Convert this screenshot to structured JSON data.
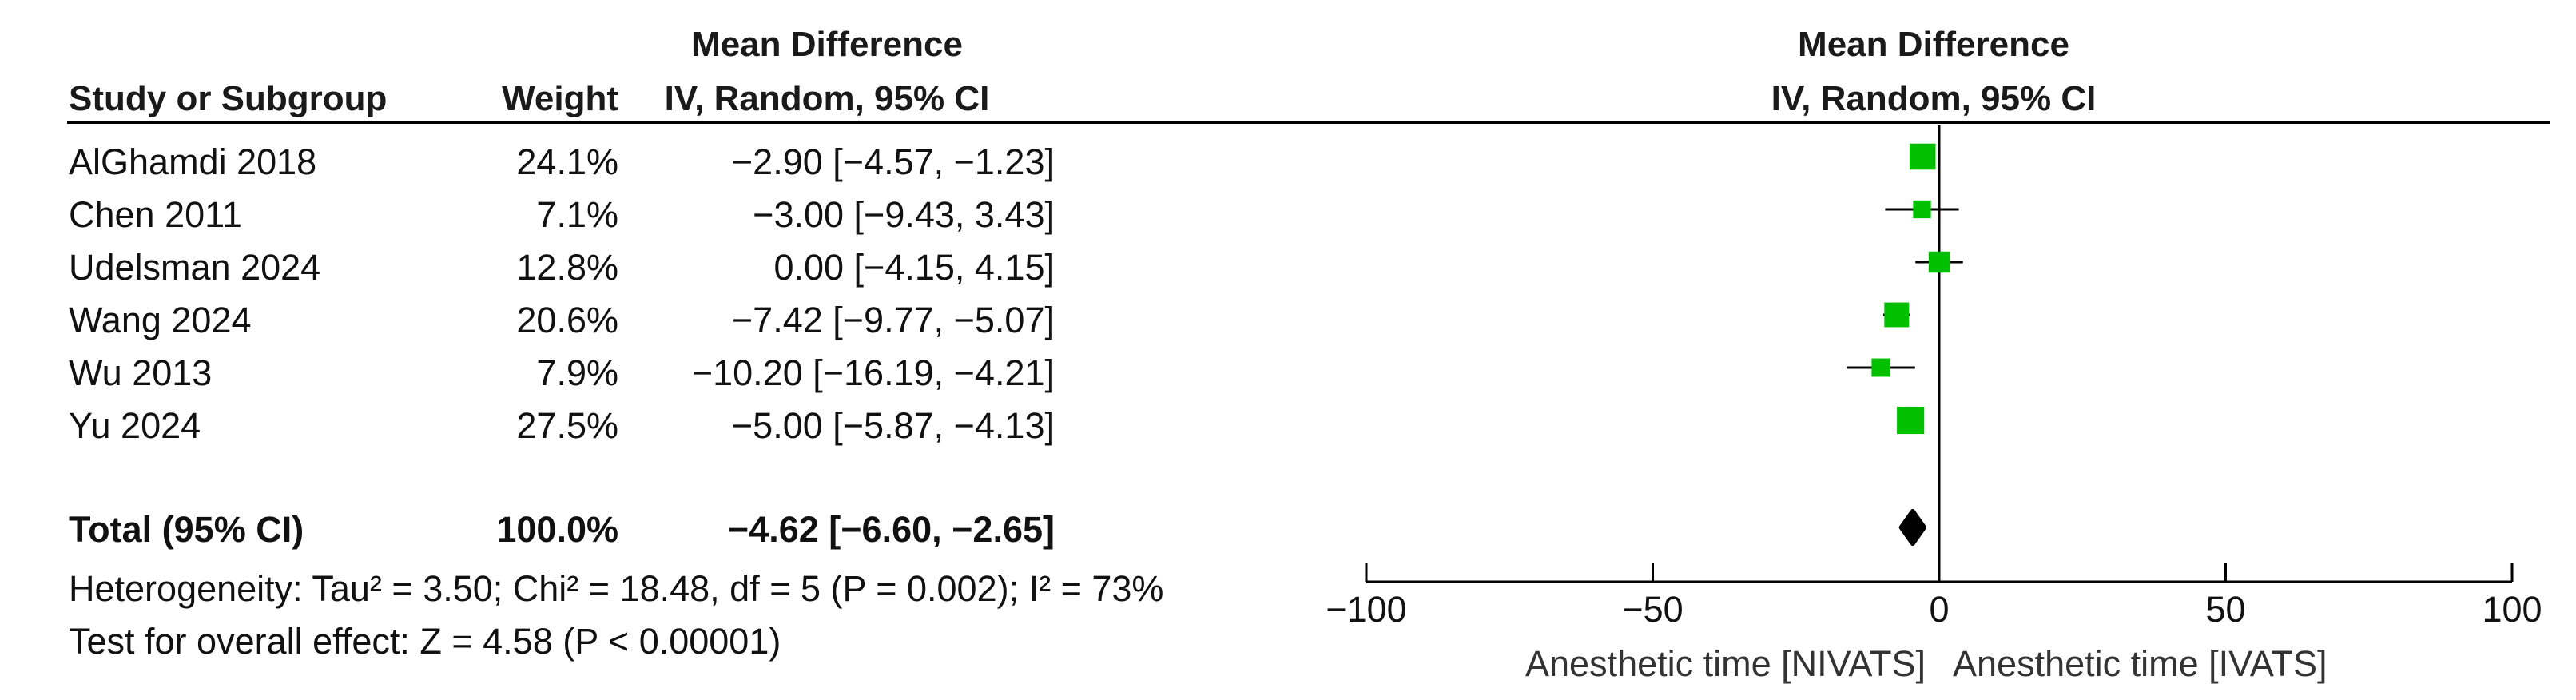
{
  "table": {
    "group_header": "Mean Difference",
    "columns": {
      "study": "Study or Subgroup",
      "weight": "Weight",
      "effect": "IV, Random, 95% CI"
    },
    "rows": [
      {
        "study": "AlGhamdi 2018",
        "weight": "24.1%",
        "effect": "−2.90 [−4.57, −1.23]"
      },
      {
        "study": "Chen 2011",
        "weight": "7.1%",
        "effect": "−3.00 [−9.43, 3.43]"
      },
      {
        "study": "Udelsman 2024",
        "weight": "12.8%",
        "effect": "0.00 [−4.15, 4.15]"
      },
      {
        "study": "Wang 2024",
        "weight": "20.6%",
        "effect": "−7.42 [−9.77, −5.07]"
      },
      {
        "study": "Wu 2013",
        "weight": "7.9%",
        "effect": "−10.20 [−16.19, −4.21]"
      },
      {
        "study": "Yu 2024",
        "weight": "27.5%",
        "effect": "−5.00 [−5.87, −4.13]"
      }
    ],
    "total": {
      "study": "Total (95% CI)",
      "weight": "100.0%",
      "effect": "−4.62 [−6.60, −2.65]"
    },
    "heterogeneity": "Heterogeneity: Tau² = 3.50; Chi² = 18.48, df = 5 (P = 0.002); I² = 73%",
    "overall_effect": "Test for overall effect: Z = 4.58 (P < 0.00001)"
  },
  "plot": {
    "header_line1": "Mean Difference",
    "header_line2": "IV, Random, 95% CI",
    "favours_left": "Anesthetic time [NIVATS]",
    "favours_right": "Anesthetic time [IVATS]"
  },
  "chart_data": {
    "type": "scatter",
    "subtype": "forest",
    "xlim": [
      -100,
      100
    ],
    "xticks": [
      -100,
      -50,
      0,
      50,
      100
    ],
    "xtick_labels": [
      "−100",
      "−50",
      "0",
      "50",
      "100"
    ],
    "studies": [
      {
        "name": "AlGhamdi 2018",
        "md": -2.9,
        "lo": -4.57,
        "hi": -1.23,
        "weight": 24.1
      },
      {
        "name": "Chen 2011",
        "md": -3.0,
        "lo": -9.43,
        "hi": 3.43,
        "weight": 7.1
      },
      {
        "name": "Udelsman 2024",
        "md": 0.0,
        "lo": -4.15,
        "hi": 4.15,
        "weight": 12.8
      },
      {
        "name": "Wang 2024",
        "md": -7.42,
        "lo": -9.77,
        "hi": -5.07,
        "weight": 20.6
      },
      {
        "name": "Wu 2013",
        "md": -10.2,
        "lo": -16.19,
        "hi": -4.21,
        "weight": 7.9
      },
      {
        "name": "Yu 2024",
        "md": -5.0,
        "lo": -5.87,
        "hi": -4.13,
        "weight": 27.5
      }
    ],
    "pooled": {
      "md": -4.62,
      "lo": -6.6,
      "hi": -2.65
    },
    "marker_color": "#00c000",
    "diamond_color": "#000000"
  }
}
